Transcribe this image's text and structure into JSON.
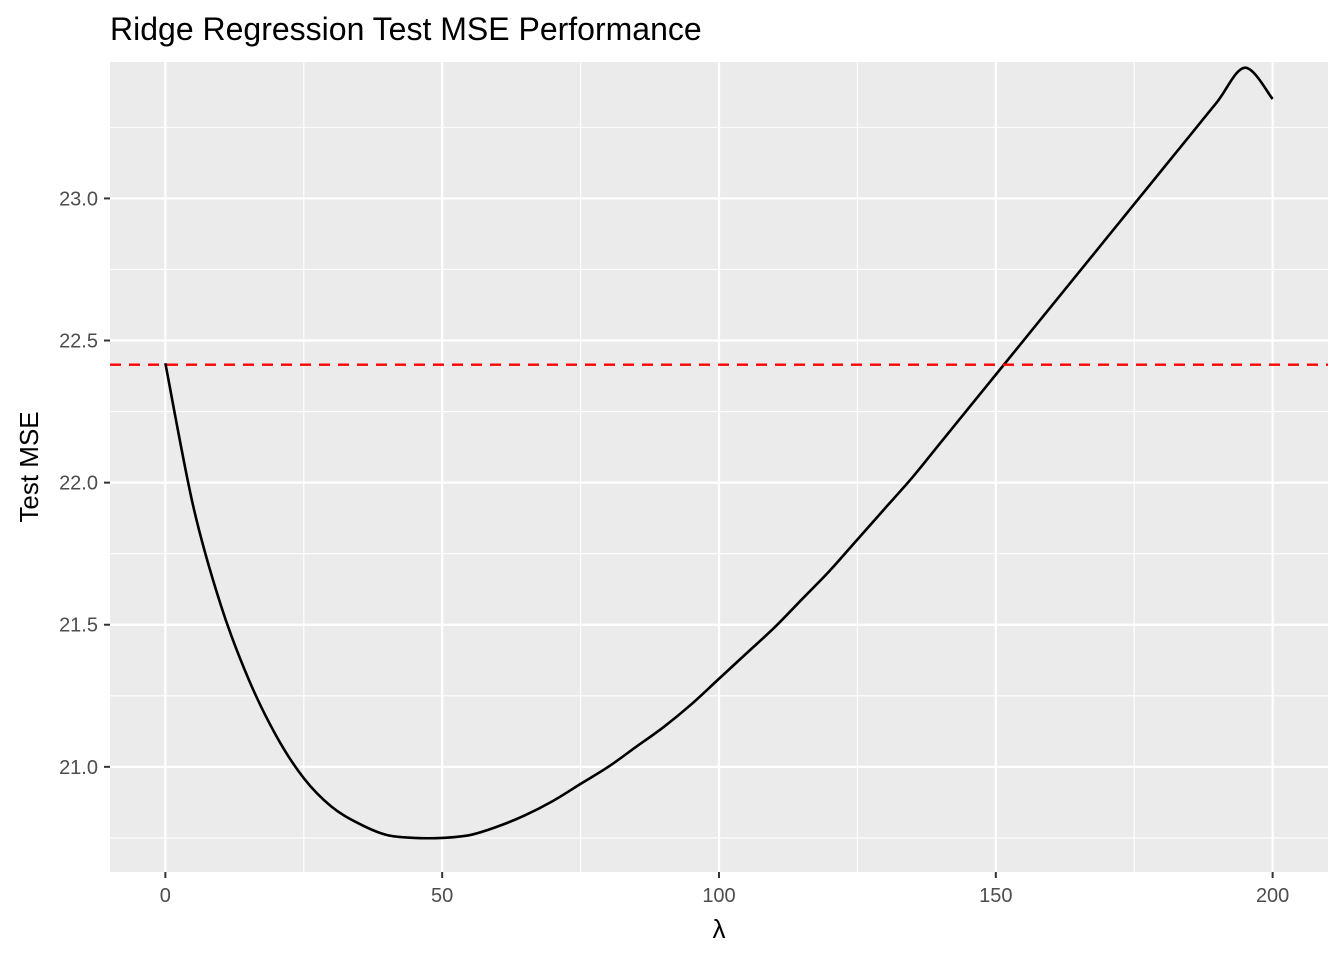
{
  "chart_data": {
    "type": "line",
    "title": "Ridge Regression Test MSE Performance",
    "xlabel": "λ",
    "ylabel": "Test MSE",
    "xlim": [
      -10,
      210
    ],
    "ylim": [
      20.63,
      23.48
    ],
    "x_ticks": [
      0,
      50,
      100,
      150,
      200
    ],
    "x_tick_labels": [
      "0",
      "50",
      "100",
      "150",
      "200"
    ],
    "y_ticks": [
      21.0,
      21.5,
      22.0,
      22.5,
      23.0
    ],
    "y_tick_labels": [
      "21.0",
      "21.5",
      "22.0",
      "22.5",
      "23.0"
    ],
    "grid": true,
    "panel_background": "#EBEBEB",
    "series": [
      {
        "color": "#000000",
        "line_style": "solid",
        "x": [
          0,
          5,
          10,
          15,
          20,
          25,
          30,
          35,
          40,
          45,
          50,
          55,
          60,
          65,
          70,
          75,
          80,
          85,
          90,
          95,
          100,
          105,
          110,
          115,
          120,
          125,
          130,
          135,
          140,
          145,
          150,
          155,
          160,
          165,
          170,
          175,
          180,
          185,
          190,
          195,
          200
        ],
        "y": [
          22.42,
          21.92,
          21.57,
          21.31,
          21.11,
          20.96,
          20.86,
          20.8,
          20.76,
          20.75,
          20.75,
          20.76,
          20.79,
          20.83,
          20.88,
          20.94,
          21.0,
          21.07,
          21.14,
          21.22,
          21.31,
          21.4,
          21.49,
          21.59,
          21.69,
          21.8,
          21.91,
          22.02,
          22.14,
          22.26,
          22.38,
          22.5,
          22.62,
          22.74,
          22.86,
          22.98,
          23.1,
          23.22,
          23.34,
          23.46,
          23.35
        ]
      }
    ],
    "reference_lines": [
      {
        "orientation": "horizontal",
        "y": 22.415,
        "color": "#FF0000",
        "line_style": "dashed"
      }
    ]
  }
}
